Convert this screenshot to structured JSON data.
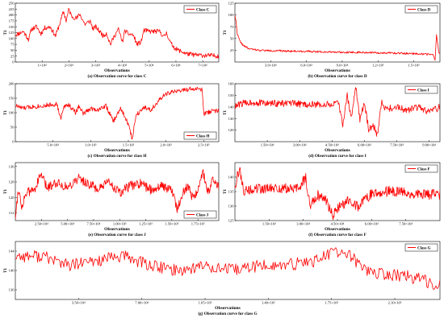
{
  "figure": {
    "series_color": "#ff0000"
  },
  "chart_data": [
    {
      "id": "C",
      "type": "line",
      "ylabel": "T1",
      "xlabel": "Observations",
      "caption": "(a) Observation curve for class C",
      "legend": "Class C",
      "legend_position": "top-right",
      "ylim": [
        0,
        250
      ],
      "xlim": [
        0,
        76000
      ],
      "yticks": [
        0,
        25,
        50,
        75,
        100,
        125,
        150,
        175,
        200,
        225,
        250
      ],
      "xticks": [
        {
          "v": 10000,
          "label": "1×10⁴"
        },
        {
          "v": 20000,
          "label": "2×10⁴"
        },
        {
          "v": 30000,
          "label": "3×10⁴"
        },
        {
          "v": 40000,
          "label": "4×10⁴"
        },
        {
          "v": 50000,
          "label": "5×10⁴"
        },
        {
          "v": 60000,
          "label": "6×10⁴"
        },
        {
          "v": 70000,
          "label": "7×10⁴"
        }
      ],
      "points": [
        [
          0,
          115
        ],
        [
          3000,
          130
        ],
        [
          5000,
          95
        ],
        [
          6000,
          140
        ],
        [
          8000,
          150
        ],
        [
          9500,
          120
        ],
        [
          11000,
          145
        ],
        [
          13000,
          150
        ],
        [
          15000,
          110
        ],
        [
          16500,
          160
        ],
        [
          18000,
          215
        ],
        [
          19000,
          175
        ],
        [
          20000,
          225
        ],
        [
          21000,
          195
        ],
        [
          23000,
          185
        ],
        [
          24000,
          205
        ],
        [
          26000,
          160
        ],
        [
          28000,
          175
        ],
        [
          29000,
          140
        ],
        [
          30000,
          150
        ],
        [
          31500,
          130
        ],
        [
          33000,
          110
        ],
        [
          34000,
          125
        ],
        [
          35500,
          75
        ],
        [
          37000,
          110
        ],
        [
          38500,
          140
        ],
        [
          40000,
          85
        ],
        [
          41000,
          135
        ],
        [
          42000,
          120
        ],
        [
          44000,
          115
        ],
        [
          45500,
          75
        ],
        [
          47000,
          85
        ],
        [
          48000,
          135
        ],
        [
          50000,
          130
        ],
        [
          52000,
          130
        ],
        [
          54000,
          130
        ],
        [
          55500,
          105
        ],
        [
          56500,
          125
        ],
        [
          58000,
          80
        ],
        [
          60000,
          55
        ],
        [
          62000,
          45
        ],
        [
          64000,
          35
        ],
        [
          67000,
          30
        ],
        [
          71000,
          28
        ],
        [
          76000,
          26
        ]
      ],
      "noise": 10,
      "seed": 11
    },
    {
      "id": "D",
      "type": "line",
      "ylabel": "T1",
      "xlabel": "Observations",
      "caption": "(b) Observation curve for class D",
      "legend": "Class D",
      "legend_position": "top-right",
      "ylim": [
        0,
        125
      ],
      "xlim": [
        0,
        172000
      ],
      "yticks": [
        25,
        50,
        75,
        100,
        125
      ],
      "xticks": [
        {
          "v": 30000,
          "label": "3.0×10⁴"
        },
        {
          "v": 60000,
          "label": "6.0×10⁴"
        },
        {
          "v": 90000,
          "label": "9.0×10⁴"
        },
        {
          "v": 120000,
          "label": "1.2×10⁵"
        },
        {
          "v": 150000,
          "label": "1.5×10⁵"
        }
      ],
      "points": [
        [
          0,
          100
        ],
        [
          1000,
          85
        ],
        [
          2000,
          60
        ],
        [
          4000,
          45
        ],
        [
          7000,
          35
        ],
        [
          12000,
          28
        ],
        [
          20000,
          25
        ],
        [
          30000,
          24
        ],
        [
          50000,
          23
        ],
        [
          70000,
          22
        ],
        [
          90000,
          21
        ],
        [
          110000,
          20
        ],
        [
          130000,
          19
        ],
        [
          150000,
          18
        ],
        [
          166000,
          16
        ],
        [
          168000,
          4
        ],
        [
          169000,
          60
        ],
        [
          171000,
          20
        ],
        [
          172000,
          18
        ]
      ],
      "noise": 2,
      "seed": 22
    },
    {
      "id": "H",
      "type": "line",
      "ylabel": "T1",
      "xlabel": "Observations",
      "caption": "(c) Observation curve for class H",
      "legend": "Class H",
      "legend_position": "bottom-right",
      "ylim": [
        0,
        200
      ],
      "xlim": [
        0,
        270000
      ],
      "yticks": [
        0,
        50,
        100,
        150,
        200
      ],
      "xticks": [
        {
          "v": 50000,
          "label": "5.0×10⁴"
        },
        {
          "v": 100000,
          "label": "1.0×10⁵"
        },
        {
          "v": 150000,
          "label": "1.5×10⁵"
        },
        {
          "v": 200000,
          "label": "2.0×10⁵"
        },
        {
          "v": 250000,
          "label": "2.5×10⁵"
        }
      ],
      "points": [
        [
          0,
          125
        ],
        [
          10000,
          115
        ],
        [
          20000,
          120
        ],
        [
          40000,
          125
        ],
        [
          55000,
          130
        ],
        [
          60000,
          80
        ],
        [
          65000,
          120
        ],
        [
          70000,
          130
        ],
        [
          80000,
          100
        ],
        [
          85000,
          125
        ],
        [
          90000,
          95
        ],
        [
          100000,
          115
        ],
        [
          110000,
          110
        ],
        [
          120000,
          125
        ],
        [
          130000,
          70
        ],
        [
          140000,
          115
        ],
        [
          150000,
          60
        ],
        [
          155000,
          10
        ],
        [
          160000,
          90
        ],
        [
          170000,
          120
        ],
        [
          180000,
          110
        ],
        [
          190000,
          140
        ],
        [
          200000,
          165
        ],
        [
          215000,
          175
        ],
        [
          235000,
          182
        ],
        [
          248000,
          180
        ],
        [
          250000,
          95
        ],
        [
          260000,
          105
        ],
        [
          270000,
          108
        ]
      ],
      "noise": 8,
      "seed": 33
    },
    {
      "id": "I",
      "type": "line",
      "ylabel": "T1",
      "xlabel": "Observations",
      "caption": "(d) Observation curve for class I",
      "legend": "Class I",
      "legend_position": "top-right",
      "ylim": [
        110,
        160
      ],
      "xlim": [
        0,
        95000
      ],
      "yticks": [
        120,
        130,
        140,
        150,
        160
      ],
      "xticks": [
        {
          "v": 15000,
          "label": "1.50×10⁴"
        },
        {
          "v": 30000,
          "label": "3.00×10⁴"
        },
        {
          "v": 45000,
          "label": "4.50×10⁴"
        },
        {
          "v": 60000,
          "label": "6.00×10⁴"
        },
        {
          "v": 75000,
          "label": "7.50×10⁴"
        },
        {
          "v": 90000,
          "label": "9.00×10⁴"
        }
      ],
      "points": [
        [
          0,
          140
        ],
        [
          3000,
          143
        ],
        [
          8000,
          144
        ],
        [
          15000,
          143
        ],
        [
          25000,
          143
        ],
        [
          35000,
          142
        ],
        [
          45000,
          142
        ],
        [
          48000,
          143
        ],
        [
          50000,
          125
        ],
        [
          52000,
          150
        ],
        [
          54000,
          130
        ],
        [
          56000,
          158
        ],
        [
          58000,
          128
        ],
        [
          60000,
          145
        ],
        [
          62000,
          120
        ],
        [
          64000,
          125
        ],
        [
          66000,
          115
        ],
        [
          68000,
          145
        ],
        [
          70000,
          138
        ],
        [
          75000,
          140
        ],
        [
          80000,
          137
        ],
        [
          85000,
          140
        ],
        [
          90000,
          135
        ],
        [
          95000,
          140
        ]
      ],
      "noise": 3,
      "seed": 44
    },
    {
      "id": "J",
      "type": "line",
      "ylabel": "T1",
      "xlabel": "Observations",
      "caption": "(e) Observation curve for class J",
      "legend": "Class J",
      "legend_position": "bottom-right",
      "ylim": [
        108,
        138
      ],
      "xlim": [
        0,
        195000
      ],
      "yticks": [
        112,
        120,
        128,
        136
      ],
      "xticks": [
        {
          "v": 25000,
          "label": "2.50×10⁴"
        },
        {
          "v": 50000,
          "label": "5.00×10⁴"
        },
        {
          "v": 75000,
          "label": "7.50×10⁴"
        },
        {
          "v": 100000,
          "label": "1.00×10⁵"
        },
        {
          "v": 125000,
          "label": "1.25×10⁵"
        },
        {
          "v": 150000,
          "label": "1.50×10⁵"
        },
        {
          "v": 175000,
          "label": "1.75×10⁵"
        }
      ],
      "points": [
        [
          0,
          110
        ],
        [
          3000,
          125
        ],
        [
          6000,
          115
        ],
        [
          10000,
          122
        ],
        [
          18000,
          124
        ],
        [
          25000,
          132
        ],
        [
          30000,
          125
        ],
        [
          40000,
          128
        ],
        [
          50000,
          125
        ],
        [
          60000,
          130
        ],
        [
          70000,
          127
        ],
        [
          80000,
          124
        ],
        [
          90000,
          128
        ],
        [
          100000,
          122
        ],
        [
          110000,
          126
        ],
        [
          120000,
          127
        ],
        [
          130000,
          124
        ],
        [
          140000,
          126
        ],
        [
          150000,
          124
        ],
        [
          155000,
          114
        ],
        [
          160000,
          122
        ],
        [
          165000,
          126
        ],
        [
          170000,
          120
        ],
        [
          175000,
          124
        ],
        [
          180000,
          133
        ],
        [
          185000,
          122
        ],
        [
          190000,
          130
        ],
        [
          195000,
          126
        ]
      ],
      "noise": 2.5,
      "seed": 55
    },
    {
      "id": "F",
      "type": "line",
      "ylabel": "T1",
      "xlabel": "Observations",
      "caption": "(f) Observation curve for class F",
      "legend": "Class F",
      "legend_position": "top-right",
      "ylim": [
        125,
        145
      ],
      "xlim": [
        0,
        90000
      ],
      "yticks": [
        125,
        130,
        135,
        140
      ],
      "xticks": [
        {
          "v": 15000,
          "label": "1.50×10⁴"
        },
        {
          "v": 30000,
          "label": "3.00×10⁴"
        },
        {
          "v": 45000,
          "label": "4.50×10⁴"
        },
        {
          "v": 60000,
          "label": "6.00×10⁴"
        },
        {
          "v": 75000,
          "label": "7.50×10⁴"
        }
      ],
      "points": [
        [
          0,
          137
        ],
        [
          2000,
          143
        ],
        [
          4000,
          135
        ],
        [
          10000,
          136
        ],
        [
          20000,
          136
        ],
        [
          28000,
          136
        ],
        [
          31000,
          140
        ],
        [
          33000,
          130
        ],
        [
          36000,
          134
        ],
        [
          40000,
          132
        ],
        [
          43000,
          127
        ],
        [
          46000,
          130
        ],
        [
          50000,
          132
        ],
        [
          54000,
          130
        ],
        [
          58000,
          133
        ],
        [
          62000,
          135
        ],
        [
          70000,
          135
        ],
        [
          80000,
          134
        ],
        [
          90000,
          134
        ]
      ],
      "noise": 1.8,
      "seed": 66
    },
    {
      "id": "G",
      "type": "line",
      "ylabel": "T1",
      "xlabel": "Observations",
      "caption": "(g) Observation curve for class G",
      "legend": "Class G",
      "legend_position": "top-right",
      "ylim": [
        134,
        146
      ],
      "xlim": [
        0,
        235000
      ],
      "yticks": [
        136,
        140,
        144
      ],
      "xticks": [
        {
          "v": 35000,
          "label": "3.50×10⁴"
        },
        {
          "v": 70000,
          "label": "7.00×10⁴"
        },
        {
          "v": 105000,
          "label": "1.05×10⁵"
        },
        {
          "v": 140000,
          "label": "1.40×10⁵"
        },
        {
          "v": 175000,
          "label": "1.75×10⁵"
        },
        {
          "v": 210000,
          "label": "2.10×10⁵"
        }
      ],
      "points": [
        [
          0,
          143
        ],
        [
          15000,
          143
        ],
        [
          30000,
          141
        ],
        [
          45000,
          142
        ],
        [
          60000,
          143
        ],
        [
          75000,
          141
        ],
        [
          90000,
          140
        ],
        [
          105000,
          141
        ],
        [
          120000,
          140
        ],
        [
          135000,
          141
        ],
        [
          150000,
          141
        ],
        [
          165000,
          142
        ],
        [
          178000,
          144
        ],
        [
          185000,
          143
        ],
        [
          195000,
          140
        ],
        [
          205000,
          139
        ],
        [
          215000,
          139
        ],
        [
          225000,
          138
        ],
        [
          235000,
          137
        ]
      ],
      "noise": 1.3,
      "seed": 77
    }
  ]
}
